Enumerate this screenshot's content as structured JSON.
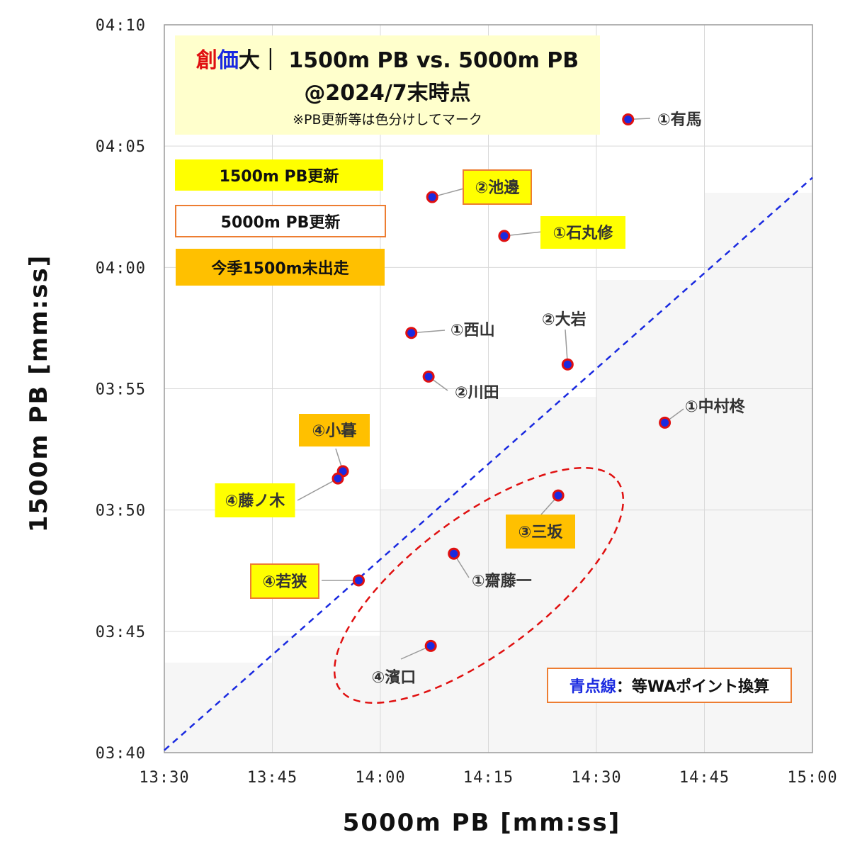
{
  "title": {
    "char1": "創",
    "char2": "価",
    "char3": "大",
    "rest": "｜ 1500m PB vs. 5000m PB",
    "line2": "@2024/7末時点",
    "line3": "※PB更新等は色分けしてマーク"
  },
  "legend": {
    "pb1500": "1500m PB更新",
    "pb5000": "5000m PB更新",
    "not_run": "今季1500m未出走"
  },
  "wa_note": {
    "prefix": "青点線",
    "suffix": "：等WAポイント換算"
  },
  "colors": {
    "pb1500": "#ffff00",
    "pb5000_border": "#ed7d31",
    "not_run": "#ffc000",
    "marker_fill": "#1a2ae0",
    "marker_ring": "#e01010",
    "equal_wa_line": "#1a2ae0",
    "ellipse": "#e01010"
  },
  "chart_data": {
    "type": "scatter",
    "xlabel": "5000m PB [mm:ss]",
    "ylabel": "1500m PB [mm:ss]",
    "x_unit": "seconds (5000m time)",
    "y_unit": "seconds (1500m time)",
    "xlim": [
      810,
      900
    ],
    "ylim": [
      220,
      250
    ],
    "x_ticks": [
      "13:30",
      "13:45",
      "14:00",
      "14:15",
      "14:30",
      "14:45",
      "15:00"
    ],
    "y_ticks": [
      "03:40",
      "03:45",
      "03:50",
      "03:55",
      "04:00",
      "04:05",
      "04:10"
    ],
    "grid": true,
    "points": [
      {
        "label": "①有馬",
        "x": 874.4,
        "y": 246.1,
        "highlight": "none"
      },
      {
        "label": "②池邊",
        "x": 847.2,
        "y": 242.9,
        "highlight": "pb1500_pb5000"
      },
      {
        "label": "①石丸修",
        "x": 857.2,
        "y": 241.3,
        "highlight": "pb1500"
      },
      {
        "label": "①西山",
        "x": 844.3,
        "y": 237.3,
        "highlight": "none"
      },
      {
        "label": "②大岩",
        "x": 866.0,
        "y": 236.0,
        "highlight": "none"
      },
      {
        "label": "②川田",
        "x": 846.7,
        "y": 235.5,
        "highlight": "none"
      },
      {
        "label": "①中村柊",
        "x": 879.5,
        "y": 233.6,
        "highlight": "none"
      },
      {
        "label": "④小暮",
        "x": 834.8,
        "y": 231.6,
        "highlight": "not_run"
      },
      {
        "label": "④藤ノ木",
        "x": 834.1,
        "y": 231.3,
        "highlight": "pb1500"
      },
      {
        "label": "③三坂",
        "x": 864.7,
        "y": 230.6,
        "highlight": "not_run"
      },
      {
        "label": "①齋藤一",
        "x": 850.2,
        "y": 228.2,
        "highlight": "none"
      },
      {
        "label": "④若狭",
        "x": 837.0,
        "y": 227.1,
        "highlight": "pb1500_pb5000"
      },
      {
        "label": "④濱口",
        "x": 847.0,
        "y": 224.4,
        "highlight": "none"
      }
    ],
    "equal_wa_line": {
      "x": [
        810,
        900
      ],
      "y": [
        220.1,
        243.7
      ]
    },
    "annotation": "青点線：等WAポイント換算"
  }
}
